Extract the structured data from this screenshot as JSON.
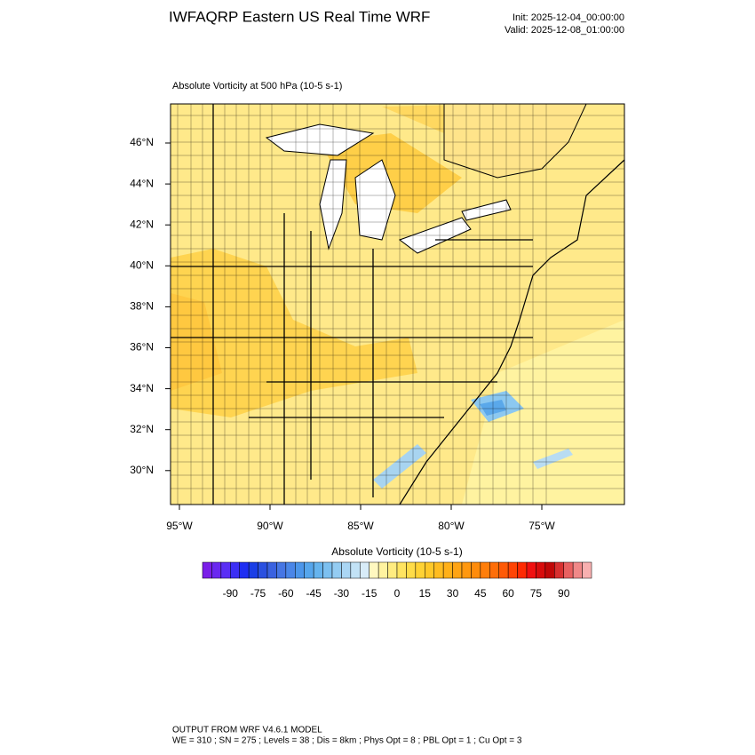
{
  "header": {
    "title": "IWFAQRP Eastern US Real Time WRF",
    "init": "Init: 2025-12-04_00:00:00",
    "valid": "Valid: 2025-12-08_01:00:00"
  },
  "map": {
    "title": "Absolute Vorticity at 500 hPa   (10-5 s-1)",
    "lat_labels": [
      "46°N",
      "44°N",
      "42°N",
      "40°N",
      "38°N",
      "36°N",
      "34°N",
      "32°N",
      "30°N"
    ],
    "lon_labels": [
      "95°W",
      "90°W",
      "85°W",
      "80°W",
      "75°W"
    ]
  },
  "colorbar": {
    "title": "Absolute Vorticity  (10-5 s-1)",
    "labels": [
      "-90",
      "-75",
      "-60",
      "-45",
      "-30",
      "-15",
      "0",
      "15",
      "30",
      "45",
      "60",
      "75",
      "90"
    ],
    "colors": [
      "#7a1ee8",
      "#6a28f0",
      "#5a2ef5",
      "#3c2ff5",
      "#1e2ef2",
      "#1a3ee6",
      "#2a50e0",
      "#3a62e0",
      "#4676e4",
      "#4a86e8",
      "#4c96ea",
      "#56a6ec",
      "#66b4ee",
      "#7cc0f0",
      "#94ccf2",
      "#aad6f4",
      "#c2e2f6",
      "#d8ecf8",
      "#fff8c0",
      "#fff3a0",
      "#ffec80",
      "#ffe460",
      "#ffdc48",
      "#ffd234",
      "#ffc828",
      "#ffbc20",
      "#ffb018",
      "#ffa414",
      "#ff9810",
      "#ff8c0c",
      "#ff7e0a",
      "#ff6e08",
      "#ff5a06",
      "#ff4404",
      "#ff2a02",
      "#f01010",
      "#d80c0c",
      "#c00808",
      "#d83030",
      "#e86060",
      "#f08888",
      "#f8b0b0"
    ]
  },
  "footer": {
    "line1": "OUTPUT FROM WRF V4.6.1 MODEL",
    "line2": "WE = 310 ; SN = 275 ; Levels = 38 ; Dis = 8km ; Phys Opt = 8 ; PBL Opt = 1 ; Cu Opt = 3"
  }
}
